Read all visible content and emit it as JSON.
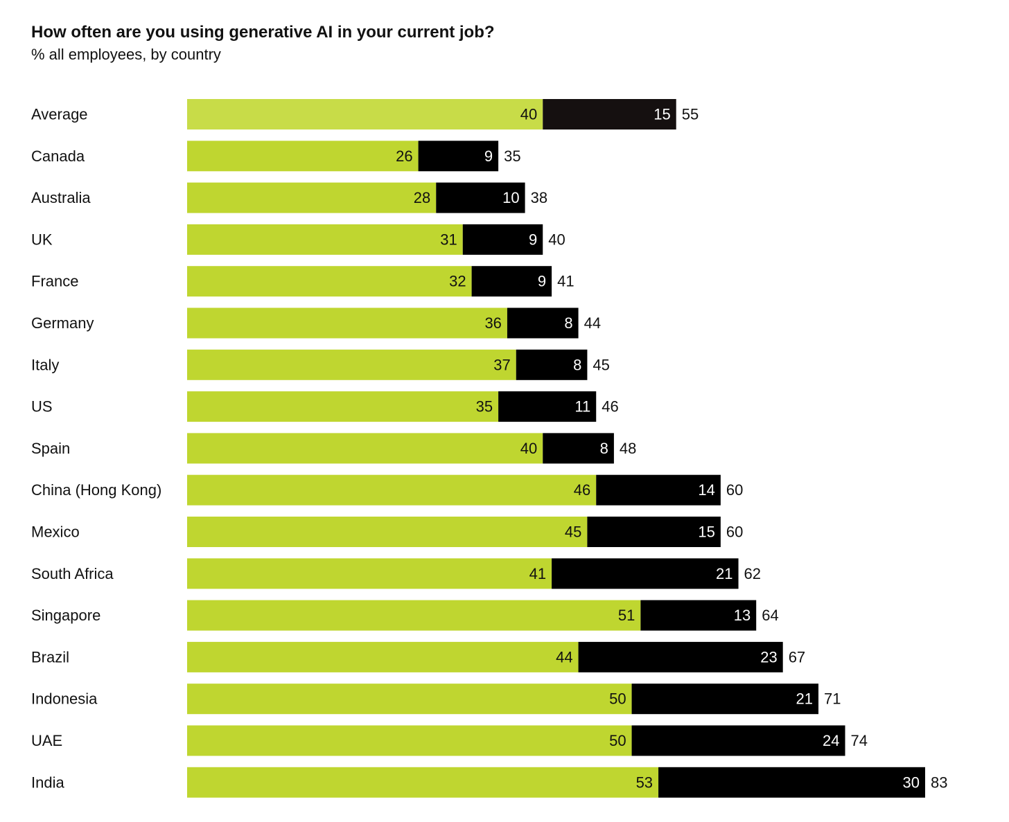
{
  "chart_data": {
    "type": "bar",
    "orientation": "horizontal",
    "stacked": true,
    "title": "How often are you using generative AI in your current job?",
    "subtitle": "% all employees, by country",
    "categories": [
      "Average",
      "Canada",
      "Australia",
      "UK",
      "France",
      "Germany",
      "Italy",
      "US",
      "Spain",
      "China (Hong Kong)",
      "Mexico",
      "South Africa",
      "Singapore",
      "Brazil",
      "Indonesia",
      "UAE",
      "India"
    ],
    "series": [
      {
        "values": [
          40,
          26,
          28,
          31,
          32,
          36,
          37,
          35,
          40,
          46,
          45,
          41,
          51,
          44,
          50,
          50,
          53
        ]
      },
      {
        "values": [
          15,
          9,
          10,
          9,
          9,
          8,
          8,
          11,
          8,
          14,
          15,
          21,
          13,
          23,
          21,
          24,
          30
        ]
      }
    ],
    "totals": [
      55,
      35,
      38,
      40,
      41,
      44,
      45,
      46,
      48,
      60,
      60,
      62,
      64,
      67,
      71,
      74,
      83
    ],
    "xlim": [
      0,
      83
    ],
    "grid": false,
    "legend": "none",
    "colors": {
      "first_segment": "#bfd630",
      "first_segment_average": "#c8dc48",
      "second_segment": "#000000",
      "second_segment_average": "#151010",
      "first_label": "#111111",
      "second_label": "#ffffff",
      "total_label": "#111111",
      "category_label": "#111111"
    }
  }
}
